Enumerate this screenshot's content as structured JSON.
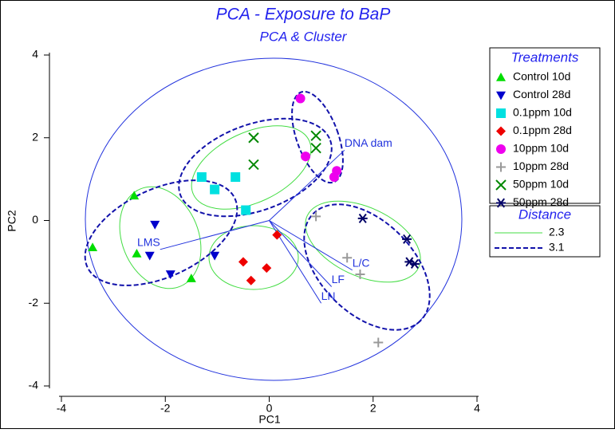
{
  "chart_data": {
    "type": "scatter",
    "title": "PCA - Exposure to BaP",
    "subtitle": "PCA & Cluster",
    "xlabel": "PC1",
    "ylabel": "PC2",
    "xlim": [
      -4,
      4
    ],
    "ylim": [
      -4,
      4
    ],
    "xticks": [
      -4,
      -2,
      0,
      2,
      4
    ],
    "yticks": [
      -4,
      -2,
      0,
      2,
      4
    ],
    "legend_title": "Treatments",
    "series": [
      {
        "name": "Control 10d",
        "color": "#00dd00",
        "marker": "triangle-up",
        "x": [
          -2.6,
          -3.4,
          -2.55,
          -1.5
        ],
        "values": [
          0.6,
          -0.65,
          -0.8,
          -1.4
        ]
      },
      {
        "name": "Control 28d",
        "color": "#0000cc",
        "marker": "triangle-down",
        "x": [
          -2.2,
          -2.3,
          -1.9,
          -1.05
        ],
        "values": [
          -0.1,
          -0.85,
          -1.3,
          -0.85
        ]
      },
      {
        "name": "0.1ppm 10d",
        "color": "#00e0e0",
        "marker": "square",
        "x": [
          -1.3,
          -1.05,
          -0.65,
          -0.45
        ],
        "values": [
          1.05,
          0.75,
          1.05,
          0.25
        ]
      },
      {
        "name": "0.1ppm 28d",
        "color": "#ee0000",
        "marker": "diamond",
        "x": [
          0.15,
          -0.5,
          -0.05,
          -0.35
        ],
        "values": [
          -0.35,
          -1.0,
          -1.15,
          -1.45
        ]
      },
      {
        "name": "10ppm 10d",
        "color": "#ee00ee",
        "marker": "circle",
        "x": [
          0.6,
          0.7,
          1.25,
          1.3
        ],
        "values": [
          2.95,
          1.55,
          1.05,
          1.2
        ]
      },
      {
        "name": "10ppm 28d",
        "color": "#999999",
        "marker": "plus",
        "x": [
          0.9,
          1.5,
          1.75,
          2.1
        ],
        "values": [
          0.1,
          -0.9,
          -1.3,
          -2.95
        ]
      },
      {
        "name": "50ppm 10d",
        "color": "#008800",
        "marker": "cross",
        "x": [
          -0.3,
          -0.3,
          0.9,
          0.9
        ],
        "values": [
          2.0,
          1.35,
          2.05,
          1.75
        ]
      },
      {
        "name": "50ppm 28d",
        "color": "#000066",
        "marker": "asterisk",
        "x": [
          1.8,
          2.65,
          2.7,
          2.8
        ],
        "values": [
          0.05,
          -0.45,
          -1.0,
          -1.05
        ]
      }
    ],
    "loadings": [
      {
        "label": "DNA dam",
        "x": 1.45,
        "y": 1.7
      },
      {
        "label": "LMS",
        "x": -2.1,
        "y": -0.7
      },
      {
        "label": "L/C",
        "x": 1.6,
        "y": -1.2
      },
      {
        "label": "LF",
        "x": 1.2,
        "y": -1.6
      },
      {
        "label": "LN",
        "x": 1.0,
        "y": -2.0
      }
    ],
    "distance_legend": {
      "title": "Distance",
      "entries": [
        "2.3",
        "3.1"
      ]
    }
  }
}
